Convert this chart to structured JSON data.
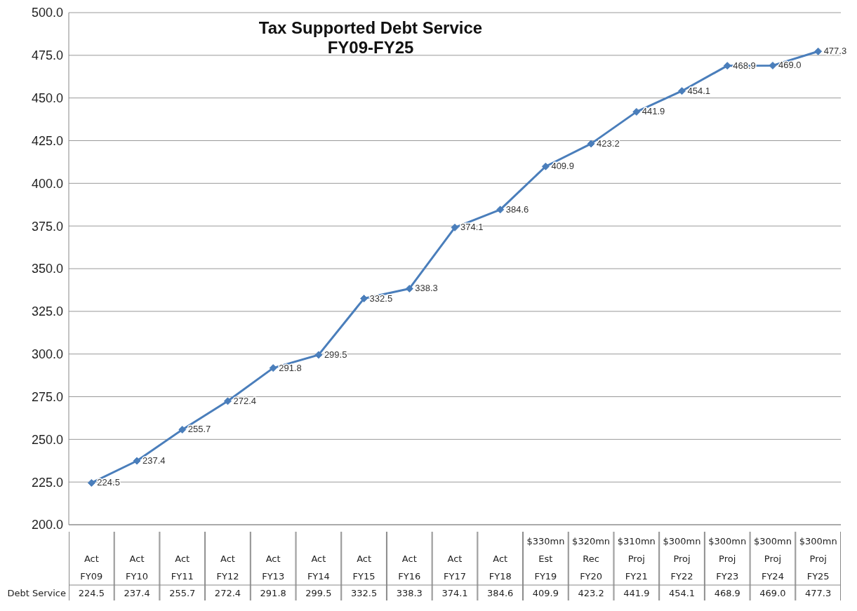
{
  "chart_data": {
    "type": "line",
    "title": "Tax Supported Debt Service",
    "subtitle": "FY09-FY25",
    "categories": [
      "Act\nFY09",
      "Act\nFY10",
      "Act\nFY11",
      "Act\nFY12",
      "Act\nFY13",
      "Act\nFY14",
      "Act\nFY15",
      "Act\nFY16",
      "Act\nFY17",
      "Act\nFY18",
      "$330mn\nEst\nFY19",
      "$320mn\nRec\nFY20",
      "$310mn\nProj\nFY21",
      "$300mn\nProj\nFY22",
      "$300mn\nProj\nFY23",
      "$300mn\nProj\nFY24",
      "$300mn\nProj\nFY25"
    ],
    "series": [
      {
        "name": "Debt Service",
        "color": "#4a7ebb",
        "values": [
          224.5,
          237.4,
          255.7,
          272.4,
          291.8,
          299.5,
          332.5,
          338.3,
          374.1,
          384.6,
          409.9,
          423.2,
          441.9,
          454.1,
          468.9,
          469.0,
          477.3
        ]
      }
    ],
    "ylim": [
      200,
      500
    ],
    "yticks": [
      {
        "value": 200,
        "label": "200.0"
      },
      {
        "value": 225,
        "label": "225.0"
      },
      {
        "value": 250,
        "label": "250.0"
      },
      {
        "value": 275,
        "label": "275.0"
      },
      {
        "value": 300,
        "label": "300.0"
      },
      {
        "value": 325,
        "label": "325.0"
      },
      {
        "value": 350,
        "label": "350.0"
      },
      {
        "value": 375,
        "label": "375.0"
      },
      {
        "value": 400,
        "label": "400.0"
      },
      {
        "value": 425,
        "label": "425.0"
      },
      {
        "value": 450,
        "label": "450.0"
      },
      {
        "value": 475,
        "label": "475.0"
      },
      {
        "value": 500,
        "label": "500.0"
      }
    ],
    "value_labels": [
      "224.5",
      "237.4",
      "255.7",
      "272.4",
      "291.8",
      "299.5",
      "332.5",
      "338.3",
      "374.1",
      "384.6",
      "409.9",
      "423.2",
      "441.9",
      "454.1",
      "468.9",
      "469.0",
      "477.3"
    ],
    "grid": "y",
    "marker": "diamond",
    "line_style": "solid",
    "legend": false
  }
}
